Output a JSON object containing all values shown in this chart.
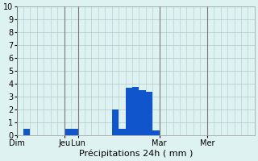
{
  "xlabel": "Précipitations 24h ( mm )",
  "background_color": "#dff2f2",
  "bar_color": "#1155cc",
  "ylim": [
    0,
    10
  ],
  "yticks": [
    0,
    1,
    2,
    3,
    4,
    5,
    6,
    7,
    8,
    9,
    10
  ],
  "num_bars": 35,
  "bar_values": [
    0,
    0.5,
    0,
    0,
    0,
    0,
    0,
    0.5,
    0.5,
    0,
    0,
    0,
    0,
    0,
    2.0,
    0.5,
    3.7,
    3.8,
    3.5,
    3.4,
    0.4,
    0,
    0,
    0,
    0,
    0,
    0,
    0,
    0,
    0,
    0,
    0,
    0,
    0,
    0
  ],
  "day_tick_positions": [
    0,
    7,
    9,
    21,
    28
  ],
  "day_tick_labels": [
    "Dim",
    "Jeu",
    "Lun",
    "Mar",
    "Mer"
  ],
  "vline_positions": [
    0,
    7,
    9,
    21,
    28
  ],
  "grid_color": "#aacccc",
  "vline_color": "#777777",
  "tick_fontsize": 7,
  "xlabel_fontsize": 8
}
